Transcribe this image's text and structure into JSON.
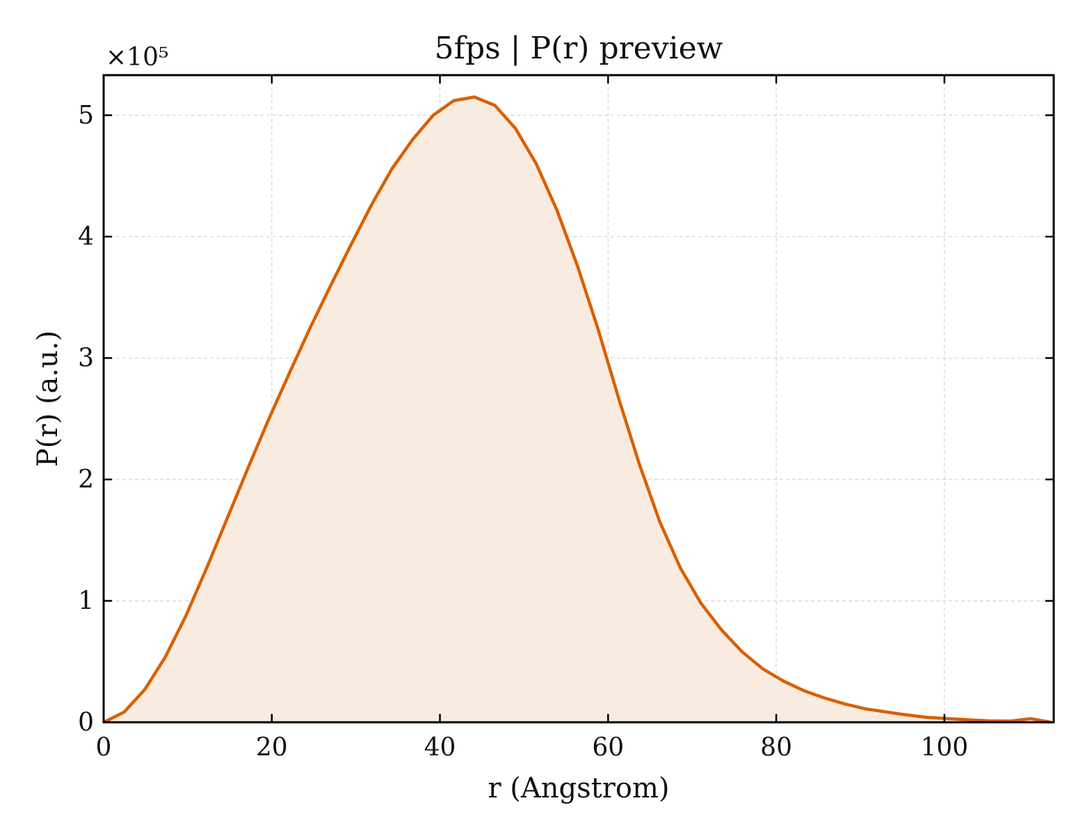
{
  "chart_data": {
    "type": "area",
    "title": "5fps | P(r) preview",
    "xlabel": "r (Angstrom)",
    "ylabel": "P(r) (a.u.)",
    "y_offset_label": "×10⁵",
    "xlim": [
      0,
      113
    ],
    "ylim": [
      0,
      533000
    ],
    "x_ticks": [
      0,
      20,
      40,
      60,
      80,
      100
    ],
    "x_tick_labels": [
      "0",
      "20",
      "40",
      "60",
      "80",
      "100"
    ],
    "y_ticks": [
      0,
      100000,
      200000,
      300000,
      400000,
      500000
    ],
    "y_tick_labels": [
      "0",
      "1",
      "2",
      "3",
      "4",
      "5"
    ],
    "grid": true,
    "colors": {
      "line": "#d95f02",
      "fill": "#f9ebdf"
    },
    "series": [
      {
        "x": [
          0,
          2.45,
          4.9,
          7.35,
          9.8,
          12.25,
          14.7,
          17.15,
          19.6,
          22.05,
          24.5,
          26.95,
          29.4,
          31.85,
          34.3,
          36.75,
          39.2,
          41.65,
          44.1,
          46.55,
          49.0,
          51.45,
          53.9,
          56.35,
          58.8,
          61.25,
          63.7,
          66.15,
          68.6,
          71.05,
          73.5,
          75.95,
          78.4,
          80.85,
          83.3,
          85.75,
          88.2,
          90.65,
          93.1,
          95.55,
          98.0,
          100.45,
          102.9,
          105.35,
          107.8,
          110.25,
          112.7
        ],
        "values": [
          0,
          8500,
          27000,
          54000,
          88000,
          127000,
          168000,
          209000,
          249000,
          287000,
          324000,
          359000,
          393000,
          426000,
          456000,
          480000,
          500000,
          512000,
          515000,
          508000,
          489000,
          460000,
          422000,
          376000,
          324000,
          267000,
          213000,
          165000,
          127000,
          98000,
          76000,
          58000,
          44000,
          34000,
          26000,
          20000,
          15000,
          11000,
          8500,
          6000,
          4000,
          3000,
          2000,
          1200,
          1000,
          3000,
          0
        ]
      }
    ]
  }
}
